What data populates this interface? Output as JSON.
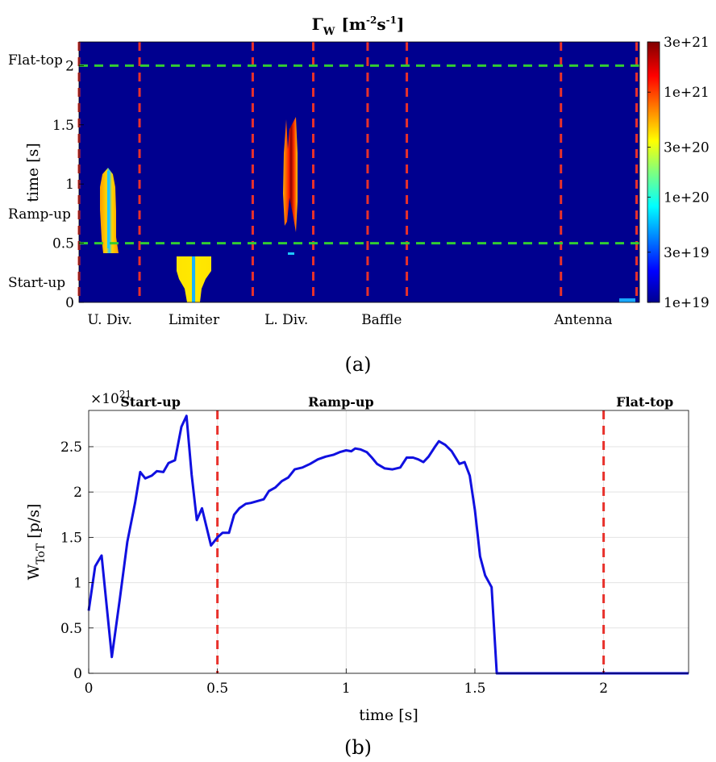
{
  "figure": {
    "caption_a": "(a)",
    "caption_b": "(b)"
  },
  "chart_data": [
    {
      "type": "heatmap",
      "title": "Γ",
      "title_subscript": "W",
      "title_unit": "[m",
      "title_unit_exp1": "-2",
      "title_unit_mid": "s",
      "title_unit_exp2": "-1",
      "title_unit_end": "]",
      "ylabel": "time [s]",
      "ylim": [
        0,
        2.2
      ],
      "yticks": [
        {
          "value": 0,
          "label": "0"
        },
        {
          "value": 0.5,
          "label": "0.5"
        },
        {
          "value": 1,
          "label": "1"
        },
        {
          "value": 1.5,
          "label": "1.5"
        },
        {
          "value": 2,
          "label": "2"
        }
      ],
      "phase_labels": [
        {
          "label": "Start-up",
          "value": 0.17
        },
        {
          "label": "Ramp-up",
          "value": 0.75
        },
        {
          "label": "Flat-top",
          "value": 2.05
        }
      ],
      "x_categories": [
        "U. Div.",
        "Limiter",
        "L. Div.",
        "Baffle",
        "Antenna"
      ],
      "x_category_positions": [
        0.055,
        0.205,
        0.37,
        0.54,
        0.9
      ],
      "region_boundaries": [
        0.0,
        0.108,
        0.31,
        0.418,
        0.515,
        0.585,
        0.86,
        0.995
      ],
      "phase_boundaries": [
        0.5,
        2.0
      ],
      "background_level": "1e+19",
      "colorbar": {
        "scale": "log",
        "min": 1e+19,
        "max": 3e+21,
        "ticks": [
          "3e+21",
          "1e+21",
          "3e+20",
          "1e+20",
          "3e+19",
          "1e+19"
        ],
        "colormap": "jet"
      },
      "flux_features": [
        {
          "region": "U. Div.",
          "t_start": 0.42,
          "t_end": 1.13,
          "peak": "~1e+21"
        },
        {
          "region": "Limiter",
          "t_start": 0.02,
          "t_end": 0.41,
          "peak": "~1e+21"
        },
        {
          "region": "L. Div.",
          "t_start": 0.68,
          "t_end": 1.6,
          "peak": "~3e+21"
        },
        {
          "region": "Antenna",
          "t_start": 0.0,
          "t_end": 0.03,
          "peak": "~3e+19"
        }
      ],
      "grid": false,
      "colors": {
        "background": "#00008f",
        "boundary": "#e8312b",
        "phase": "#33cc33"
      }
    },
    {
      "type": "line",
      "xlabel": "time [s]",
      "ylabel_main": "W",
      "ylabel_sub": "ToT",
      "ylabel_unit": " [p/s]",
      "y_multiplier_base": "×10",
      "y_multiplier_exp": "21",
      "xlim": [
        0,
        2.33
      ],
      "ylim": [
        0,
        2.9
      ],
      "xticks": [
        0,
        0.5,
        1,
        1.5,
        2
      ],
      "xtick_labels": [
        "0",
        "0.5",
        "1",
        "1.5",
        "2"
      ],
      "yticks": [
        0,
        0.5,
        1,
        1.5,
        2,
        2.5
      ],
      "ytick_labels": [
        "0",
        "0.5",
        "1",
        "1.5",
        "2",
        "2.5"
      ],
      "grid": true,
      "phase_lines": [
        0.5,
        2.0
      ],
      "phase_labels": [
        {
          "label": "Start-up",
          "x": 0.24
        },
        {
          "label": "Ramp-up",
          "x": 0.98
        },
        {
          "label": "Flat-top",
          "x": 2.16
        }
      ],
      "series": [
        {
          "color": "#1010e0",
          "x": [
            0.0,
            0.025,
            0.05,
            0.09,
            0.12,
            0.15,
            0.18,
            0.2,
            0.22,
            0.245,
            0.265,
            0.29,
            0.31,
            0.335,
            0.36,
            0.38,
            0.4,
            0.42,
            0.44,
            0.475,
            0.5,
            0.52,
            0.545,
            0.565,
            0.585,
            0.61,
            0.63,
            0.655,
            0.68,
            0.7,
            0.725,
            0.75,
            0.775,
            0.8,
            0.83,
            0.86,
            0.89,
            0.92,
            0.95,
            0.975,
            1.0,
            1.02,
            1.035,
            1.055,
            1.08,
            1.1,
            1.12,
            1.15,
            1.18,
            1.21,
            1.235,
            1.26,
            1.28,
            1.3,
            1.32,
            1.345,
            1.36,
            1.385,
            1.41,
            1.44,
            1.46,
            1.48,
            1.5,
            1.52,
            1.54,
            1.565,
            1.585,
            1.6,
            1.8,
            2.0,
            2.33
          ],
          "y": [
            0.69,
            1.18,
            1.3,
            0.18,
            0.8,
            1.45,
            1.88,
            2.22,
            2.15,
            2.18,
            2.23,
            2.22,
            2.32,
            2.35,
            2.72,
            2.84,
            2.19,
            1.69,
            1.82,
            1.41,
            1.5,
            1.55,
            1.55,
            1.75,
            1.82,
            1.87,
            1.88,
            1.9,
            1.92,
            2.01,
            2.05,
            2.12,
            2.16,
            2.25,
            2.27,
            2.31,
            2.36,
            2.39,
            2.41,
            2.44,
            2.46,
            2.45,
            2.48,
            2.47,
            2.44,
            2.38,
            2.31,
            2.26,
            2.25,
            2.27,
            2.38,
            2.38,
            2.36,
            2.33,
            2.39,
            2.5,
            2.56,
            2.52,
            2.45,
            2.31,
            2.33,
            2.18,
            1.8,
            1.29,
            1.08,
            0.95,
            0.0,
            0.0,
            0.0,
            0.0,
            0.0
          ]
        }
      ]
    }
  ]
}
